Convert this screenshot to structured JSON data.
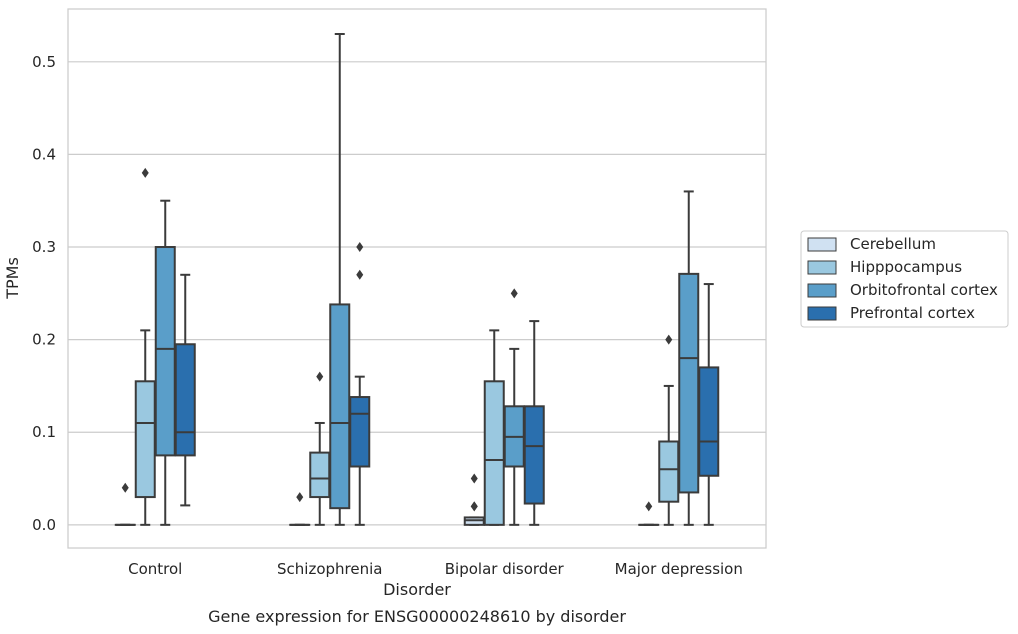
{
  "chart_data": {
    "type": "box",
    "xlabel": "Disorder",
    "ylabel": "TPMs",
    "caption": "Gene expression for ENSG00000248610 by disorder",
    "ylim": [
      -0.025,
      0.557
    ],
    "yticks": [
      "0.0",
      "0.1",
      "0.2",
      "0.3",
      "0.4",
      "0.5"
    ],
    "grid": true,
    "legend_position": "right",
    "categories": [
      "Control",
      "Schizophrenia",
      "Bipolar disorder",
      "Major depression"
    ],
    "series": [
      {
        "name": "Cerebellum",
        "color": "#d0e1f2",
        "boxes": [
          {
            "whislo": 0,
            "q1": 0,
            "med": 0,
            "q3": 0,
            "whishi": 0,
            "fliers": [
              0.04
            ]
          },
          {
            "whislo": 0,
            "q1": 0,
            "med": 0,
            "q3": 0,
            "whishi": 0,
            "fliers": [
              0.03
            ]
          },
          {
            "whislo": 0,
            "q1": 0,
            "med": 0.005,
            "q3": 0.008,
            "whishi": 0.008,
            "fliers": [
              0.02,
              0.02,
              0.05
            ]
          },
          {
            "whislo": 0,
            "q1": 0,
            "med": 0,
            "q3": 0,
            "whishi": 0,
            "fliers": [
              0.02
            ]
          }
        ]
      },
      {
        "name": "Hipppocampus",
        "color": "#9ac8e0",
        "boxes": [
          {
            "whislo": 0,
            "q1": 0.03,
            "med": 0.11,
            "q3": 0.155,
            "whishi": 0.21,
            "fliers": [
              0.38
            ]
          },
          {
            "whislo": 0,
            "q1": 0.03,
            "med": 0.05,
            "q3": 0.078,
            "whishi": 0.11,
            "fliers": [
              0.16
            ]
          },
          {
            "whislo": 0,
            "q1": 0,
            "med": 0.07,
            "q3": 0.155,
            "whishi": 0.21,
            "fliers": []
          },
          {
            "whislo": 0,
            "q1": 0.025,
            "med": 0.06,
            "q3": 0.09,
            "whishi": 0.15,
            "fliers": [
              0.2
            ]
          }
        ]
      },
      {
        "name": "Orbitofrontal cortex",
        "color": "#5a9ec9",
        "boxes": [
          {
            "whislo": 0,
            "q1": 0.075,
            "med": 0.19,
            "q3": 0.3,
            "whishi": 0.35,
            "fliers": []
          },
          {
            "whislo": 0,
            "q1": 0.018,
            "med": 0.11,
            "q3": 0.238,
            "whishi": 0.53,
            "fliers": []
          },
          {
            "whislo": 0,
            "q1": 0.063,
            "med": 0.095,
            "q3": 0.128,
            "whishi": 0.19,
            "fliers": [
              0.25
            ]
          },
          {
            "whislo": 0,
            "q1": 0.035,
            "med": 0.18,
            "q3": 0.271,
            "whishi": 0.36,
            "fliers": []
          }
        ]
      },
      {
        "name": "Prefrontal cortex",
        "color": "#2a6fae",
        "boxes": [
          {
            "whislo": 0.021,
            "q1": 0.075,
            "med": 0.1,
            "q3": 0.195,
            "whishi": 0.27,
            "fliers": []
          },
          {
            "whislo": 0,
            "q1": 0.063,
            "med": 0.12,
            "q3": 0.138,
            "whishi": 0.16,
            "fliers": [
              0.27,
              0.3
            ]
          },
          {
            "whislo": 0,
            "q1": 0.023,
            "med": 0.085,
            "q3": 0.128,
            "whishi": 0.22,
            "fliers": []
          },
          {
            "whislo": 0,
            "q1": 0.053,
            "med": 0.09,
            "q3": 0.17,
            "whishi": 0.26,
            "fliers": []
          }
        ]
      }
    ]
  }
}
